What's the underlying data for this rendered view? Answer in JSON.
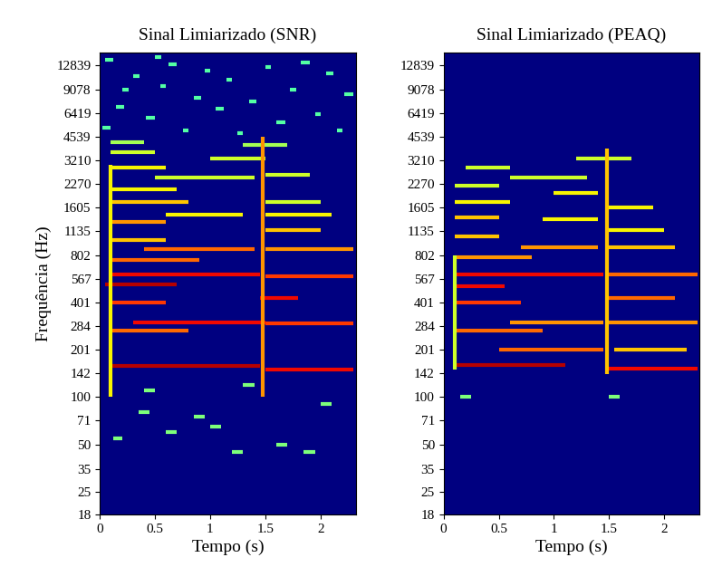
{
  "chart_data": [
    {
      "type": "heatmap",
      "title": "Sinal Limiarizado (SNR)",
      "x_label": "Tempo (s)",
      "y_label": "Frequência (Hz)",
      "log": "y",
      "xlim": [
        0,
        2.32
      ],
      "ylim": [
        18,
        15500
      ],
      "xticks": [
        0,
        0.5,
        1,
        1.5,
        2
      ],
      "yticks": [
        18,
        25,
        35,
        50,
        71,
        100,
        142,
        201,
        284,
        401,
        567,
        802,
        1135,
        1605,
        2270,
        3210,
        4539,
        6419,
        9078,
        12839
      ],
      "value_range": [
        0,
        1
      ],
      "tracks": [
        [
          0.08,
          1.45,
          158,
          0.95
        ],
        [
          1.5,
          2.3,
          150,
          0.9
        ],
        [
          0.1,
          0.8,
          265,
          0.8
        ],
        [
          0.3,
          1.5,
          300,
          0.9
        ],
        [
          1.5,
          2.3,
          295,
          0.85
        ],
        [
          0.08,
          0.6,
          400,
          0.85
        ],
        [
          1.45,
          1.8,
          430,
          0.9
        ],
        [
          0.05,
          0.7,
          520,
          0.95
        ],
        [
          0.1,
          1.45,
          600,
          0.9
        ],
        [
          1.5,
          2.3,
          590,
          0.85
        ],
        [
          0.1,
          0.9,
          750,
          0.8
        ],
        [
          0.4,
          1.4,
          880,
          0.8
        ],
        [
          1.5,
          2.3,
          870,
          0.75
        ],
        [
          0.1,
          0.6,
          1000,
          0.7
        ],
        [
          1.5,
          2.0,
          1150,
          0.7
        ],
        [
          0.1,
          0.6,
          1300,
          0.75
        ],
        [
          0.6,
          1.3,
          1450,
          0.65
        ],
        [
          1.5,
          2.1,
          1450,
          0.65
        ],
        [
          0.1,
          0.8,
          1750,
          0.7
        ],
        [
          1.5,
          2.0,
          1750,
          0.6
        ],
        [
          0.1,
          0.7,
          2100,
          0.65
        ],
        [
          0.5,
          1.4,
          2500,
          0.6
        ],
        [
          1.5,
          1.9,
          2600,
          0.6
        ],
        [
          0.1,
          0.6,
          2900,
          0.65
        ],
        [
          1.0,
          1.5,
          3300,
          0.6
        ],
        [
          0.1,
          0.5,
          3600,
          0.6
        ],
        [
          0.1,
          0.4,
          4200,
          0.55
        ],
        [
          1.3,
          1.7,
          4000,
          0.55
        ],
        [
          0.02,
          0.1,
          5200,
          0.45
        ],
        [
          0.15,
          0.22,
          7000,
          0.45
        ],
        [
          0.3,
          0.36,
          11000,
          0.45
        ],
        [
          0.42,
          0.5,
          6000,
          0.45
        ],
        [
          0.55,
          0.6,
          9500,
          0.45
        ],
        [
          0.62,
          0.7,
          13000,
          0.45
        ],
        [
          0.75,
          0.8,
          5000,
          0.45
        ],
        [
          0.85,
          0.92,
          8000,
          0.45
        ],
        [
          0.95,
          1.0,
          12000,
          0.45
        ],
        [
          1.05,
          1.12,
          6800,
          0.45
        ],
        [
          1.15,
          1.2,
          10500,
          0.45
        ],
        [
          1.25,
          1.3,
          4800,
          0.45
        ],
        [
          1.35,
          1.42,
          7600,
          0.45
        ],
        [
          1.5,
          1.55,
          12500,
          0.45
        ],
        [
          1.6,
          1.68,
          5600,
          0.45
        ],
        [
          1.72,
          1.78,
          9000,
          0.45
        ],
        [
          1.82,
          1.9,
          13500,
          0.45
        ],
        [
          1.95,
          2.0,
          6300,
          0.45
        ],
        [
          2.05,
          2.12,
          11500,
          0.45
        ],
        [
          2.15,
          2.2,
          5000,
          0.45
        ],
        [
          2.22,
          2.3,
          8500,
          0.45
        ],
        [
          0.05,
          0.12,
          14000,
          0.45
        ],
        [
          0.2,
          0.26,
          9000,
          0.45
        ],
        [
          0.5,
          0.56,
          14500,
          0.45
        ],
        [
          0.12,
          0.2,
          55,
          0.5
        ],
        [
          0.35,
          0.45,
          80,
          0.5
        ],
        [
          0.6,
          0.7,
          60,
          0.5
        ],
        [
          0.85,
          0.95,
          75,
          0.5
        ],
        [
          1.0,
          1.1,
          65,
          0.5
        ],
        [
          1.2,
          1.3,
          45,
          0.5
        ],
        [
          1.6,
          1.7,
          50,
          0.5
        ],
        [
          1.85,
          1.95,
          45,
          0.5
        ],
        [
          2.0,
          2.1,
          90,
          0.5
        ],
        [
          0.4,
          0.5,
          110,
          0.5
        ],
        [
          1.3,
          1.4,
          120,
          0.5
        ]
      ],
      "bursts": [
        [
          1.48,
          100,
          4500,
          0.75
        ],
        [
          0.1,
          100,
          3000,
          0.65
        ]
      ]
    },
    {
      "type": "heatmap",
      "title": "Sinal Limiarizado (PEAQ)",
      "x_label": "Tempo (s)",
      "log": "y",
      "xlim": [
        0,
        2.32
      ],
      "ylim": [
        18,
        15500
      ],
      "xticks": [
        0,
        0.5,
        1,
        1.5,
        2
      ],
      "yticks": [
        18,
        25,
        35,
        50,
        71,
        100,
        142,
        201,
        284,
        401,
        567,
        802,
        1135,
        1605,
        2270,
        3210,
        4539,
        6419,
        9078,
        12839
      ],
      "value_range": [
        0,
        1
      ],
      "tracks": [
        [
          0.12,
          1.1,
          160,
          0.95
        ],
        [
          1.5,
          2.3,
          152,
          0.9
        ],
        [
          0.5,
          1.45,
          200,
          0.8
        ],
        [
          1.55,
          2.2,
          200,
          0.7
        ],
        [
          0.1,
          0.9,
          265,
          0.8
        ],
        [
          0.6,
          1.45,
          300,
          0.75
        ],
        [
          1.5,
          2.3,
          300,
          0.75
        ],
        [
          0.1,
          0.7,
          400,
          0.85
        ],
        [
          1.5,
          2.1,
          430,
          0.8
        ],
        [
          0.1,
          0.55,
          510,
          0.9
        ],
        [
          0.1,
          1.45,
          600,
          0.9
        ],
        [
          1.5,
          2.3,
          600,
          0.8
        ],
        [
          0.1,
          0.8,
          780,
          0.75
        ],
        [
          0.7,
          1.4,
          900,
          0.75
        ],
        [
          1.5,
          2.1,
          900,
          0.7
        ],
        [
          0.1,
          0.5,
          1050,
          0.7
        ],
        [
          1.5,
          2.0,
          1150,
          0.65
        ],
        [
          0.1,
          0.5,
          1400,
          0.7
        ],
        [
          0.9,
          1.4,
          1350,
          0.65
        ],
        [
          1.5,
          1.9,
          1600,
          0.65
        ],
        [
          0.1,
          0.6,
          1750,
          0.65
        ],
        [
          1.0,
          1.4,
          2000,
          0.65
        ],
        [
          0.1,
          0.5,
          2200,
          0.6
        ],
        [
          0.6,
          1.3,
          2500,
          0.6
        ],
        [
          0.2,
          0.6,
          2900,
          0.6
        ],
        [
          1.2,
          1.7,
          3300,
          0.6
        ],
        [
          0.15,
          0.25,
          100,
          0.5
        ],
        [
          1.5,
          1.6,
          100,
          0.5
        ]
      ],
      "bursts": [
        [
          1.48,
          140,
          3800,
          0.7
        ],
        [
          0.1,
          150,
          800,
          0.6
        ]
      ]
    }
  ]
}
